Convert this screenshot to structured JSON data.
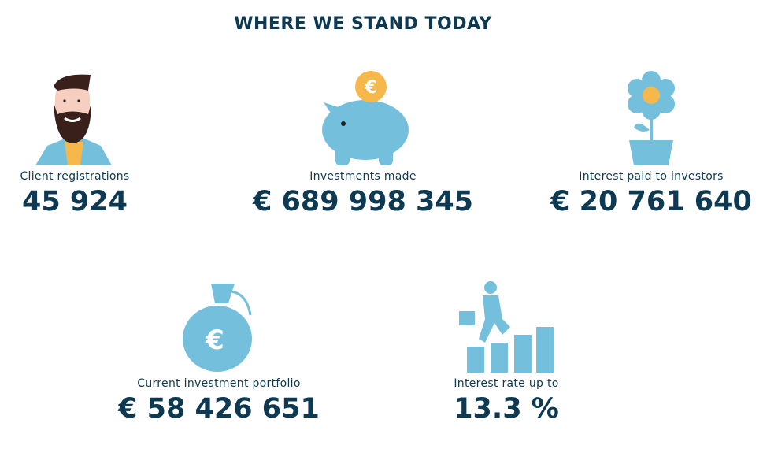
{
  "title": "WHERE WE STAND TODAY",
  "colors": {
    "navy": "#0d3a52",
    "blue": "#74c0dc",
    "orange": "#f7b84b"
  },
  "stats": [
    {
      "icon": "bearded-man-icon",
      "label": "Client registrations",
      "value": "45 924"
    },
    {
      "icon": "piggy-bank-icon",
      "label": "Investments made",
      "value": "€ 689 998 345"
    },
    {
      "icon": "flower-pot-icon",
      "label": "Interest paid to investors",
      "value": "€ 20 761 640"
    },
    {
      "icon": "money-bag-icon",
      "label": "Current investment portfolio",
      "value": "€ 58 426 651"
    },
    {
      "icon": "climbing-stairs-icon",
      "label": "Interest rate up to",
      "value": "13.3 %"
    }
  ]
}
